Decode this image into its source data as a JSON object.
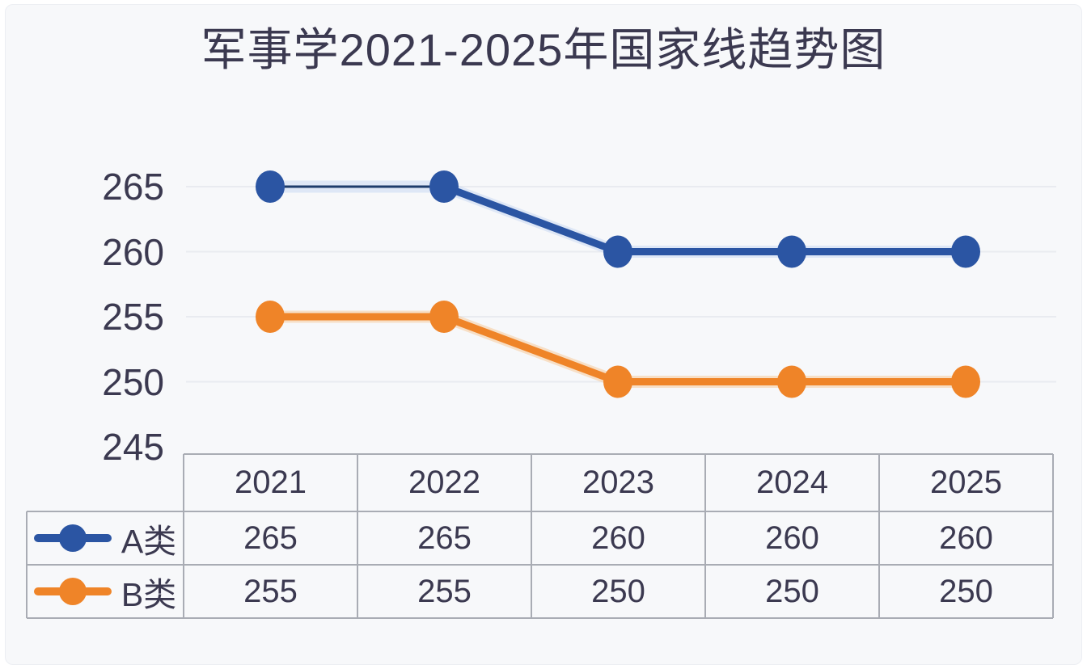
{
  "chart_data": {
    "type": "line",
    "title": "军事学2021-2025年国家线趋势图",
    "categories": [
      "2021",
      "2022",
      "2023",
      "2024",
      "2025"
    ],
    "series": [
      {
        "name": "A类",
        "values": [
          265,
          265,
          260,
          260,
          260
        ],
        "color": "#2b55a3",
        "thin_segment_color": "#1d3c6b",
        "glow_color": "#b9cdf0"
      },
      {
        "name": "B类",
        "values": [
          255,
          255,
          250,
          250,
          250
        ],
        "color": "#ef8428",
        "glow_color": "#f7b877"
      }
    ],
    "yticks": [
      265,
      260,
      255,
      250,
      245
    ],
    "ylim": [
      245,
      267.5
    ],
    "xlabel": "",
    "ylabel": "",
    "grid": true,
    "legend_position": "table-left-column",
    "colors": {
      "text": "#3b3950",
      "gridline": "#e9ebf0",
      "table_border": "#a9acb4",
      "card_background": "#f7f8fa",
      "page_background": "#ffffff"
    }
  }
}
